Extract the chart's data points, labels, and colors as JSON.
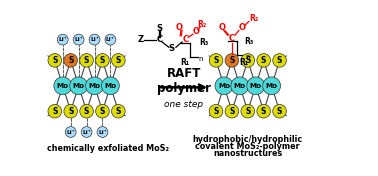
{
  "bg_color": "#ffffff",
  "mo_color": "#4dd9d9",
  "s_color": "#dddd00",
  "s_orange_color": "#e07820",
  "li_color": "#aaddff",
  "raft_color": "#ff0000",
  "bond_color": "#555555",
  "label_left": "chemically exfoliated MoS₂",
  "label_right_1": "hydrophobic/hydrophilic",
  "label_right_2": "covalent MoS₂-polymer",
  "label_right_3": "nanostructures",
  "label_center_1": "RAFT",
  "label_center_2": "polymer",
  "label_center_3": "one step"
}
